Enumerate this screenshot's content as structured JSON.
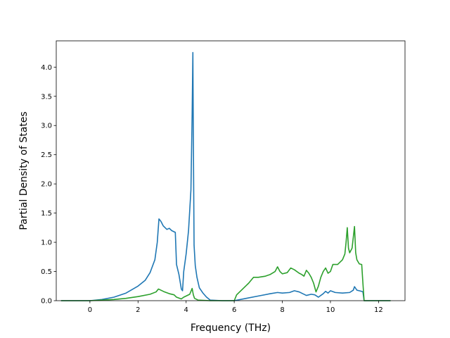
{
  "chart_data": {
    "type": "line",
    "title": "",
    "xlabel": "Frequency (THz)",
    "ylabel": "Partial Density of States",
    "xlim": [
      -1.4,
      13.1
    ],
    "ylim": [
      0.0,
      4.45
    ],
    "xticks": [
      0,
      2,
      4,
      6,
      8,
      10,
      12
    ],
    "yticks": [
      0.0,
      0.5,
      1.0,
      1.5,
      2.0,
      2.5,
      3.0,
      3.5,
      4.0
    ],
    "grid": false,
    "legend": "none",
    "series": [
      {
        "color": "#1f77b4",
        "x": [
          -1.2,
          -0.5,
          0.0,
          0.5,
          1.0,
          1.5,
          2.0,
          2.3,
          2.5,
          2.7,
          2.8,
          2.87,
          2.95,
          3.05,
          3.2,
          3.3,
          3.4,
          3.55,
          3.6,
          3.7,
          3.8,
          3.85,
          3.9,
          4.0,
          4.1,
          4.2,
          4.25,
          4.28,
          4.3,
          4.33,
          4.38,
          4.45,
          4.55,
          4.7,
          4.85,
          5.0,
          5.5,
          6.0,
          6.5,
          7.0,
          7.5,
          7.8,
          8.0,
          8.3,
          8.5,
          8.7,
          9.0,
          9.2,
          9.35,
          9.5,
          9.7,
          9.8,
          9.9,
          10.0,
          10.2,
          10.5,
          10.8,
          10.95,
          11.0,
          11.1,
          11.3,
          11.35,
          11.4,
          12.5
        ],
        "y": [
          0.0,
          0.0,
          0.0,
          0.02,
          0.06,
          0.13,
          0.25,
          0.35,
          0.48,
          0.7,
          1.0,
          1.4,
          1.36,
          1.28,
          1.22,
          1.24,
          1.2,
          1.17,
          0.62,
          0.45,
          0.2,
          0.17,
          0.5,
          0.8,
          1.2,
          1.9,
          3.2,
          4.25,
          2.8,
          0.95,
          0.6,
          0.4,
          0.22,
          0.13,
          0.06,
          0.01,
          0.0,
          0.0,
          0.04,
          0.08,
          0.12,
          0.14,
          0.13,
          0.14,
          0.17,
          0.15,
          0.09,
          0.11,
          0.1,
          0.06,
          0.12,
          0.16,
          0.13,
          0.17,
          0.14,
          0.13,
          0.14,
          0.18,
          0.24,
          0.18,
          0.16,
          0.15,
          0.0,
          0.0
        ]
      },
      {
        "color": "#2ca02c",
        "x": [
          -1.2,
          0.0,
          0.5,
          1.0,
          1.5,
          2.0,
          2.5,
          2.75,
          2.85,
          2.95,
          3.1,
          3.3,
          3.5,
          3.6,
          3.8,
          3.9,
          4.0,
          4.15,
          4.25,
          4.3,
          4.35,
          4.5,
          5.0,
          6.0,
          6.1,
          6.3,
          6.5,
          6.6,
          6.7,
          6.8,
          7.0,
          7.3,
          7.5,
          7.7,
          7.8,
          7.9,
          8.0,
          8.2,
          8.35,
          8.5,
          8.7,
          8.8,
          8.9,
          9.0,
          9.1,
          9.2,
          9.3,
          9.4,
          9.5,
          9.6,
          9.7,
          9.8,
          9.9,
          10.0,
          10.1,
          10.3,
          10.5,
          10.6,
          10.65,
          10.7,
          10.75,
          10.8,
          10.9,
          11.0,
          11.05,
          11.1,
          11.2,
          11.3,
          11.35,
          11.4,
          12.5
        ],
        "y": [
          0.0,
          0.0,
          0.01,
          0.02,
          0.04,
          0.07,
          0.11,
          0.15,
          0.2,
          0.18,
          0.15,
          0.12,
          0.1,
          0.06,
          0.03,
          0.06,
          0.08,
          0.11,
          0.21,
          0.1,
          0.04,
          0.01,
          0.0,
          0.0,
          0.1,
          0.18,
          0.26,
          0.3,
          0.35,
          0.4,
          0.4,
          0.42,
          0.45,
          0.5,
          0.58,
          0.5,
          0.46,
          0.48,
          0.56,
          0.53,
          0.47,
          0.45,
          0.42,
          0.52,
          0.47,
          0.4,
          0.3,
          0.15,
          0.25,
          0.4,
          0.5,
          0.56,
          0.47,
          0.5,
          0.62,
          0.62,
          0.7,
          0.8,
          1.0,
          1.25,
          0.9,
          0.82,
          0.9,
          1.27,
          0.82,
          0.7,
          0.63,
          0.62,
          0.3,
          0.0,
          0.0
        ]
      }
    ]
  }
}
